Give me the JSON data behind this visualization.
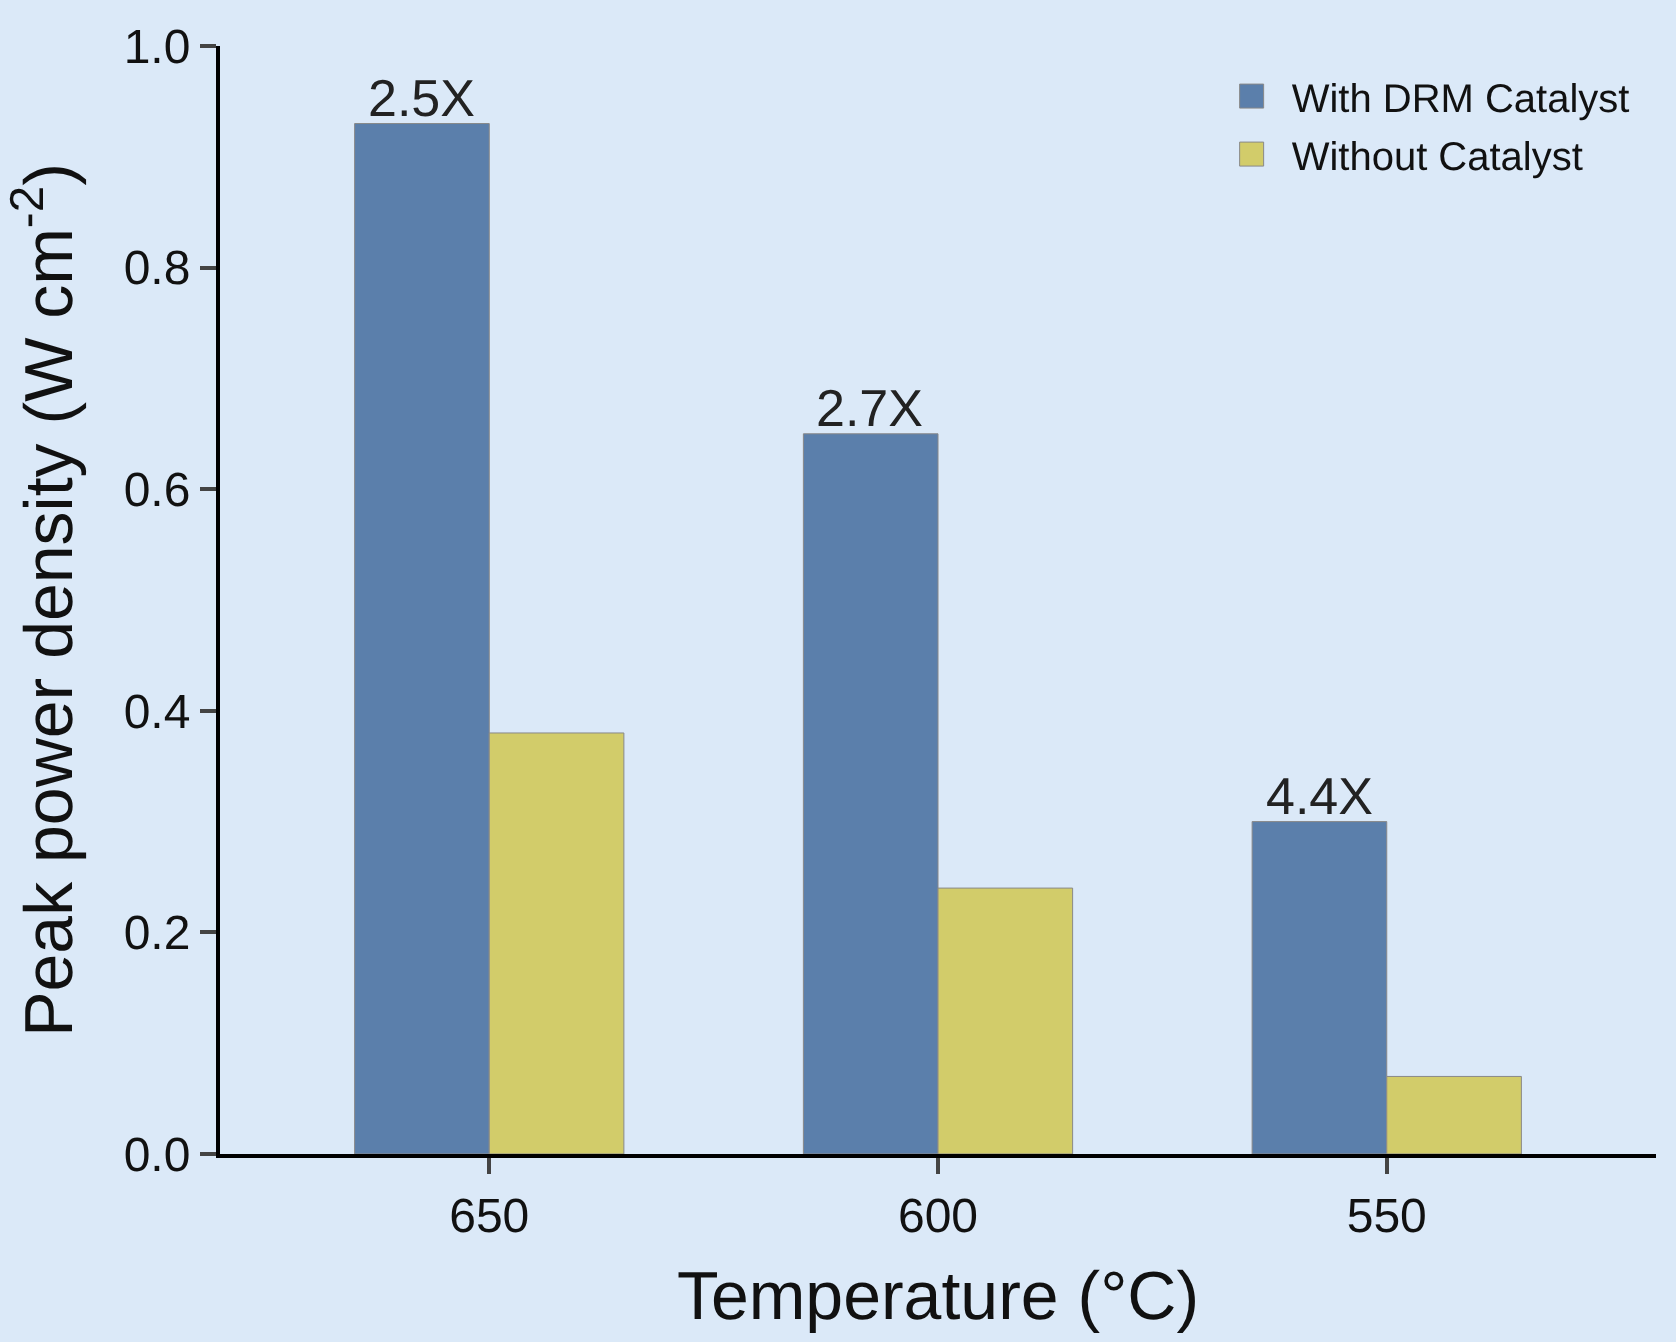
{
  "chart_data": {
    "type": "bar",
    "xlabel": "Temperature (°C)",
    "ylabel": "Peak power density (W cm$^{-2}$)",
    "categories": [
      "650",
      "600",
      "550"
    ],
    "series": [
      {
        "name": "With DRM Catalyst",
        "color": "#5b7fab",
        "values": [
          0.93,
          0.65,
          0.3
        ]
      },
      {
        "name": "Without Catalyst",
        "color": "#d2cc6a",
        "values": [
          0.38,
          0.24,
          0.07
        ]
      }
    ],
    "ylim": [
      0,
      1
    ],
    "yticks": [
      {
        "value": 0,
        "label": "0.0"
      },
      {
        "value": 0.2,
        "label": "0.2"
      },
      {
        "value": 0.4,
        "label": "0.4"
      },
      {
        "value": 0.6,
        "label": "0.6"
      },
      {
        "value": 0.8,
        "label": "0.8"
      },
      {
        "value": 1,
        "label": "1.0"
      }
    ],
    "annotations": [
      {
        "text": "2.5X",
        "x": "650",
        "y": 0.93
      },
      {
        "text": "2.7X",
        "x": "600",
        "y": 0.65
      },
      {
        "text": "4.4X",
        "x": "550",
        "y": 0.3
      }
    ],
    "legend": "top right",
    "grid": false
  }
}
